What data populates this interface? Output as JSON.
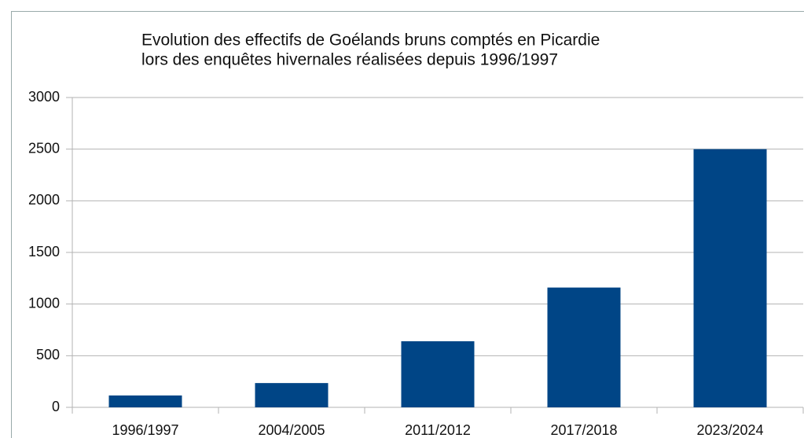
{
  "chart_data": {
    "type": "bar",
    "title": "Evolution des effectifs de Goélands bruns comptés en Picardie",
    "subtitle": "lors des enquêtes hivernales réalisées depuis 1996/1997",
    "categories": [
      "1996/1997",
      "2004/2005",
      "2011/2012",
      "2017/2018",
      "2023/2024"
    ],
    "values": [
      115,
      235,
      640,
      1160,
      2500
    ],
    "color": "#004586",
    "ylim": [
      0,
      3000
    ],
    "yticks": [
      0,
      500,
      1000,
      1500,
      2000,
      2500,
      3000
    ],
    "grid": true
  }
}
